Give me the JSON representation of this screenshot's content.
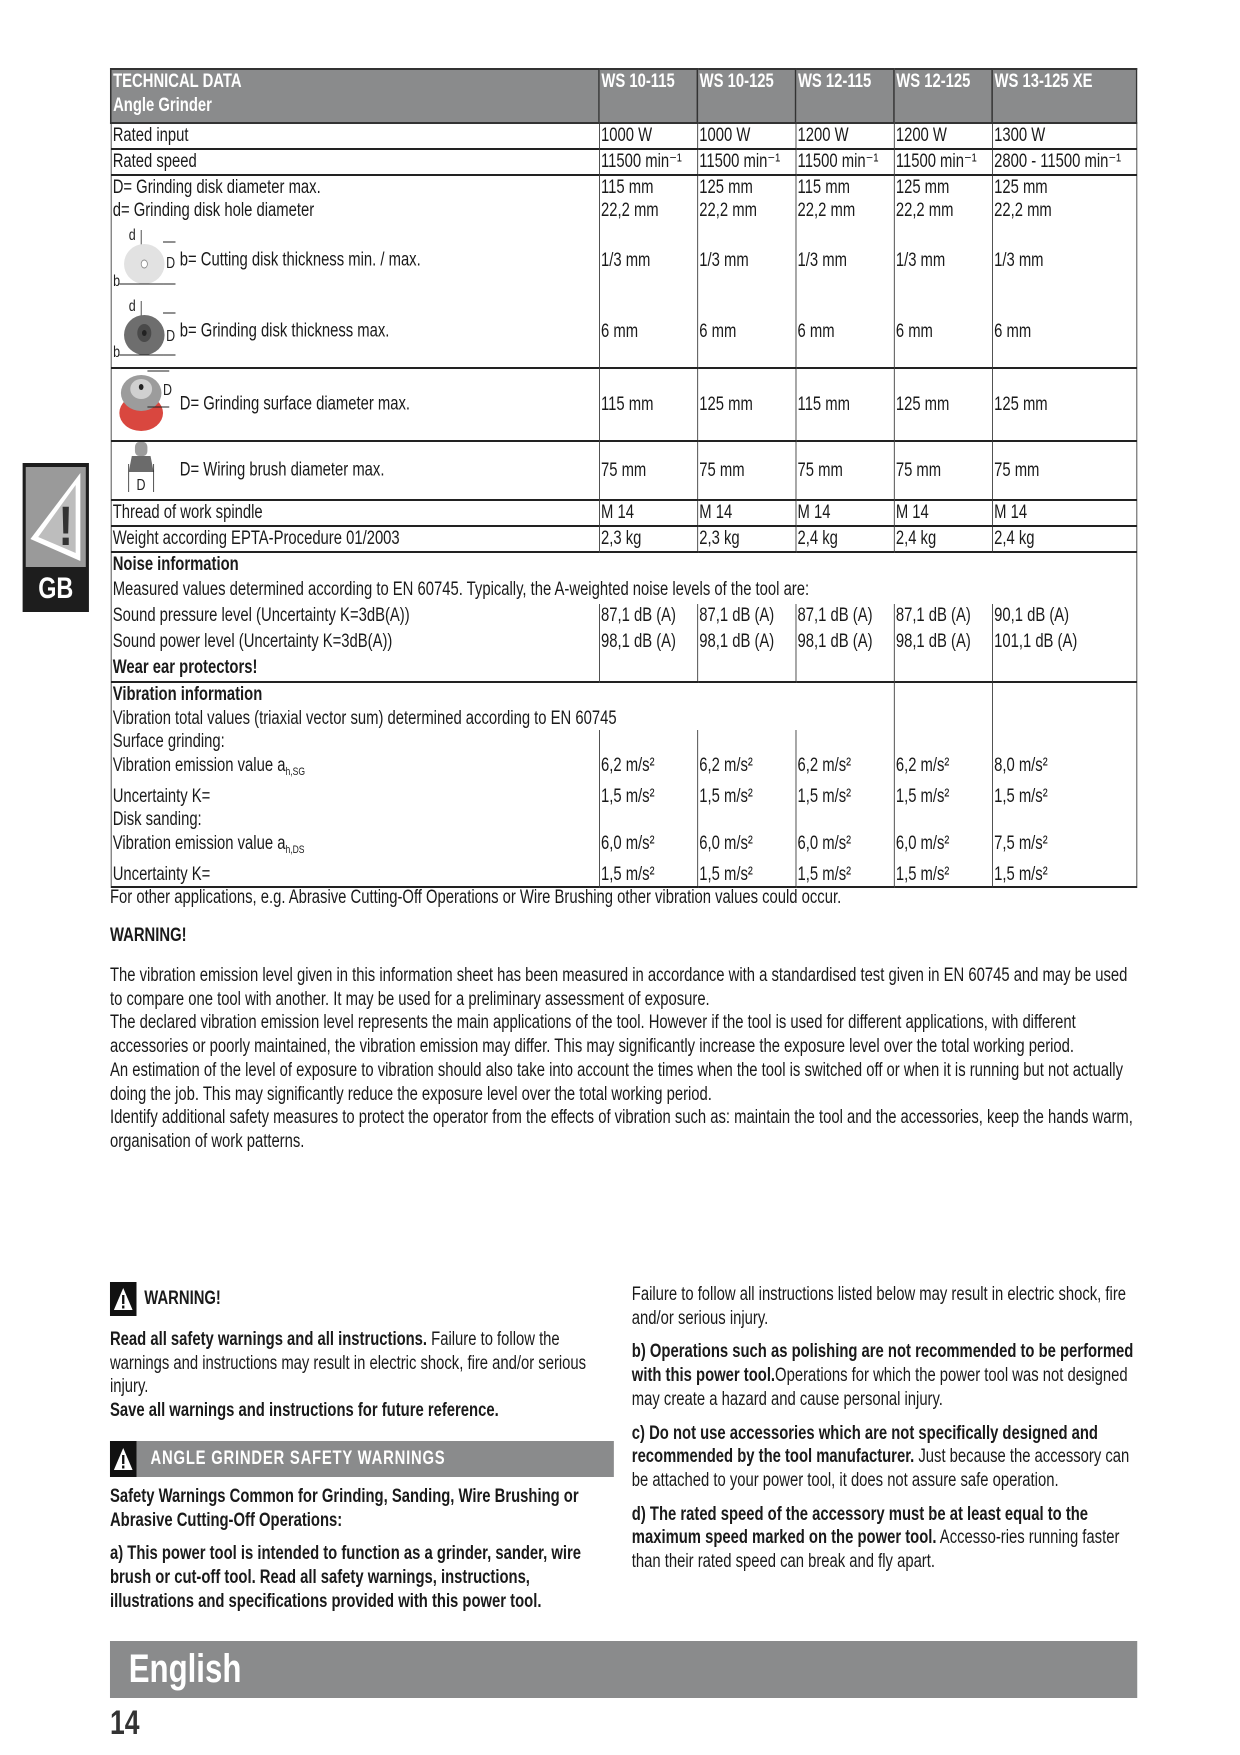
{
  "side_tab": {
    "label": "GB",
    "icon": "warning-exclamation-icon"
  },
  "table": {
    "title": "TECHNICAL DATA",
    "subtitle": "Angle Grinder",
    "models": [
      "WS 10-115",
      "WS 10-125",
      "WS 12-115",
      "WS 12-125",
      "WS 13-125 XE"
    ],
    "rated_input": {
      "label": "Rated input",
      "values": [
        "1000 W",
        "1000 W",
        "1200 W",
        "1200 W",
        "1300 W"
      ]
    },
    "rated_speed": {
      "label": "Rated speed",
      "values": [
        "11500 min⁻¹",
        "11500 min⁻¹",
        "11500 min⁻¹",
        "11500 min⁻¹",
        "2800 - 11500 min⁻¹"
      ]
    },
    "disk_diameter": {
      "label": "D= Grinding disk diameter max.",
      "values": [
        "115 mm",
        "125 mm",
        "115 mm",
        "125 mm",
        "125 mm"
      ]
    },
    "hole_diameter": {
      "label": "d= Grinding disk hole diameter",
      "values": [
        "22,2 mm",
        "22,2 mm",
        "22,2 mm",
        "22,2 mm",
        "22,2 mm"
      ]
    },
    "cutting_thickness": {
      "label": "b= Cutting disk thickness min. / max.",
      "icon": "cutting-disk-icon",
      "values": [
        "1/3 mm",
        "1/3 mm",
        "1/3 mm",
        "1/3 mm",
        "1/3 mm"
      ]
    },
    "grinding_thickness": {
      "label": "b= Grinding disk thickness max.",
      "icon": "grinding-disk-icon",
      "values": [
        "6 mm",
        "6 mm",
        "6 mm",
        "6 mm",
        "6 mm"
      ]
    },
    "surface_diameter": {
      "label": "D= Grinding surface diameter max.",
      "icon": "sanding-disk-icon",
      "values": [
        "115 mm",
        "125 mm",
        "115 mm",
        "125 mm",
        "125 mm"
      ]
    },
    "brush_diameter": {
      "label": "D= Wiring brush diameter max.",
      "icon": "wire-brush-icon",
      "values": [
        "75 mm",
        "75 mm",
        "75 mm",
        "75 mm",
        "75 mm"
      ]
    },
    "thread": {
      "label": "Thread of work spindle",
      "values": [
        "M 14",
        "M 14",
        "M 14",
        "M 14",
        "M 14"
      ]
    },
    "weight": {
      "label": "Weight according EPTA-Procedure 01/2003",
      "values": [
        "2,3 kg",
        "2,3 kg",
        "2,4 kg",
        "2,4 kg",
        "2,4 kg"
      ]
    },
    "noise": {
      "heading": "Noise information",
      "intro": "Measured values determined according to EN 60745. Typically, the A-weighted noise levels of the tool are:",
      "pressure": {
        "label": "Sound pressure level (Uncertainty K=3dB(A))",
        "values": [
          "87,1 dB (A)",
          "87,1 dB (A)",
          "87,1 dB (A)",
          "87,1 dB (A)",
          "90,1 dB (A)"
        ]
      },
      "power": {
        "label": "Sound power level (Uncertainty K=3dB(A))",
        "values": [
          "98,1 dB (A)",
          "98,1 dB (A)",
          "98,1 dB (A)",
          "98,1 dB (A)",
          "101,1 dB (A)"
        ]
      },
      "ear": "Wear ear protectors!"
    },
    "vibration": {
      "heading": "Vibration information",
      "intro": "Vibration total values (triaxial vector sum) determined according to EN 60745",
      "surface_label": "Surface grinding:",
      "sg_emission": {
        "label": "Vibration emission value a",
        "sub": "h,SG",
        "values": [
          "6,2 m/s²",
          "6,2 m/s²",
          "6,2 m/s²",
          "6,2 m/s²",
          "8,0 m/s²"
        ]
      },
      "sg_uncertainty": {
        "label": "Uncertainty K=",
        "values": [
          "1,5 m/s²",
          "1,5 m/s²",
          "1,5 m/s²",
          "1,5 m/s²",
          "1,5 m/s²"
        ]
      },
      "disk_label": "Disk sanding:",
      "ds_emission": {
        "label": "Vibration emission value a",
        "sub": "h,DS",
        "values": [
          "6,0 m/s²",
          "6,0 m/s²",
          "6,0 m/s²",
          "6,0 m/s²",
          "7,5 m/s²"
        ]
      },
      "ds_uncertainty": {
        "label": "Uncertainty K=",
        "values": [
          "1,5 m/s²",
          "1,5 m/s²",
          "1,5 m/s²",
          "1,5 m/s²",
          "1,5 m/s²"
        ]
      }
    }
  },
  "note": "For other applications, e.g. Abrasive Cutting-Off Operations or Wire Brushing other vibration values could occur.",
  "warning_heading": "WARNING!",
  "warning_paragraphs": [
    "The vibration emission level given in this information sheet has been measured in accordance with a standardised test given in EN 60745 and may be used to compare one tool with another. It may be used for a preliminary assessment of exposure.",
    "The declared vibration emission level represents the main applications of the tool. However if the tool is used for different applications, with different accessories or poorly maintained, the vibration emission may differ. This may significantly increase the exposure level over the total working period.",
    "An estimation of the level of exposure to vibration should also take into account the times when the tool is switched off or when it is running but not actually doing the job. This may significantly reduce the exposure level over the total working period.",
    "Identify additional safety measures to protect the operator from the effects of vibration such as: maintain the tool and the accessories, keep the hands warm, organisation of work patterns."
  ],
  "safety": {
    "warning_label": "WARNING!",
    "read_bold": "Read all safety warnings and all instructions.",
    "read_text": " Failure to follow the warnings and instructions may result in electric shock, fire and/or serious injury.",
    "save_bold": "Save all warnings and instructions for future reference.",
    "section_title": "ANGLE GRINDER SAFETY WARNINGS",
    "common_heading": "Safety Warnings Common for Grinding, Sanding, Wire Brushing or Abrasive Cutting-Off Operations:",
    "a_bold": "a)  This power tool is intended to function as a grinder, sander, wire brush or cut-off tool. Read all safety warnings, instructions, illustrations and specifications provided with this power tool.",
    "a_text": " Failure to follow all instructions listed below may result in electric shock, fire and/or serious injury.",
    "b_bold": "b)  Operations such as polishing are not recommended to be performed with this power tool.",
    "b_text": "Operations for which the power tool was not designed may create a hazard and cause personal injury.",
    "c_bold": "c)  Do not use accessories which are not specifically designed and recommended by the tool manufacturer.",
    "c_text": " Just because the accessory can be attached to your power tool, it does not assure safe operation.",
    "d_bold": "d)  The rated speed of the accessory must be at least equal to the maximum speed marked on the power tool.",
    "d_text": " Accesso-ries running faster than their rated speed can break and fly apart."
  },
  "footer": {
    "language": "English",
    "page_number": "14"
  }
}
